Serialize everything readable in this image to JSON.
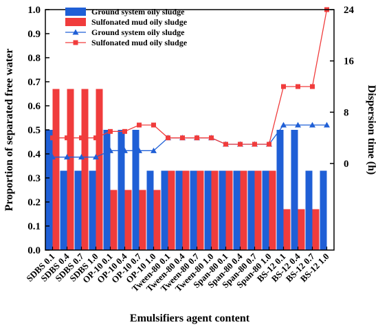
{
  "chart_data": {
    "type": "bar",
    "xlabel": "Emulsifiers agent content",
    "ylabel": "Proportion of separated free water",
    "y2label": "Dispersion time (h)",
    "ylim": [
      0,
      1.0
    ],
    "yticks": [
      "0.0",
      "0.1",
      "0.2",
      "0.3",
      "0.4",
      "0.5",
      "0.6",
      "0.7",
      "0.8",
      "0.9",
      "1.0"
    ],
    "y2lim": [
      -13.5,
      24
    ],
    "y2ticks": [
      "0",
      "8",
      "16",
      "24"
    ],
    "categories": [
      "SDBS 0.1",
      "SDBS 0.4",
      "SDBS 0.7",
      "SDBS 1.0",
      "OP-10 0.1",
      "OP-10 0.4",
      "OP-10 0.7",
      "OP-10 1.0",
      "Tween-80 0.1",
      "Tween-80 0.4",
      "Tween-80 0.7",
      "Tween-80 1.0",
      "Span-80 0.1",
      "Span-80 0.4",
      "Span-80 0.7",
      "Span-80 1.0",
      "BS-12 0.1",
      "BS-12 0.4",
      "BS-12 0.7",
      "BS-12 1.0"
    ],
    "series": [
      {
        "name": "Ground system oily sludge",
        "kind": "bar",
        "color": "#1f5fd6",
        "values": [
          0.5,
          0.33,
          0.33,
          0.33,
          0.5,
          0.5,
          0.5,
          0.33,
          0.33,
          0.33,
          0.33,
          0.33,
          0.33,
          0.33,
          0.33,
          0.33,
          0.5,
          0.5,
          0.33,
          0.33
        ]
      },
      {
        "name": "Sulfonated mud oily sludge",
        "kind": "bar",
        "color": "#f03c3c",
        "values": [
          0.67,
          0.67,
          0.67,
          0.67,
          0.25,
          0.25,
          0.25,
          0.25,
          0.33,
          0.33,
          0.33,
          0.33,
          0.33,
          0.33,
          0.33,
          0.33,
          0.17,
          0.17,
          0.17,
          null
        ]
      },
      {
        "name": "Ground system oily sludge",
        "kind": "line",
        "marker": "triangle",
        "color": "#1f5fd6",
        "axis": "right",
        "values": [
          1,
          1,
          1,
          1,
          2,
          2,
          2,
          2,
          4,
          4,
          4,
          4,
          3,
          3,
          3,
          3,
          6,
          6,
          6,
          6
        ]
      },
      {
        "name": "Sulfonated mud oily sludge",
        "kind": "line",
        "marker": "square",
        "color": "#f03c3c",
        "axis": "right",
        "values": [
          4,
          4,
          4,
          4,
          5,
          5,
          6,
          6,
          4,
          4,
          4,
          4,
          3,
          3,
          3,
          3,
          12,
          12,
          12,
          24
        ]
      }
    ],
    "legend": {
      "position": "top-left"
    },
    "grid": false
  }
}
